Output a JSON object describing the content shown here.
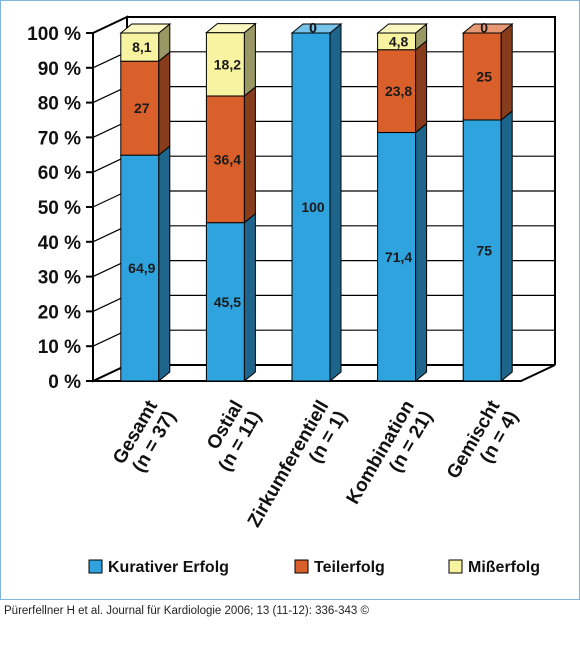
{
  "chart_data": {
    "type": "bar",
    "stacked": true,
    "three_d": true,
    "categories": [
      "Gesamt\n(n = 37)",
      "Ostial\n(n = 11)",
      "Zirkumferentiell\n(n = 1)",
      "Kombination\n(n = 21)",
      "Gemischt\n(n = 4)"
    ],
    "series": [
      {
        "name": "Kurativer Erfolg",
        "values": [
          64.9,
          45.5,
          100,
          71.4,
          75
        ],
        "labels": [
          "64,9",
          "45,5",
          "100",
          "71,4",
          "75"
        ],
        "color": "#2ea3de"
      },
      {
        "name": "Teilerfolg",
        "values": [
          27,
          36.4,
          0,
          23.8,
          25
        ],
        "labels": [
          "27",
          "36,4",
          "0",
          "23,8",
          "25"
        ],
        "color": "#d9602b"
      },
      {
        "name": "Mißerfolg",
        "values": [
          8.1,
          18.2,
          0,
          4.8,
          0
        ],
        "labels": [
          "8,1",
          "18,2",
          "0",
          "4,8",
          "0"
        ],
        "color": "#f7f3a0"
      }
    ],
    "yticks": [
      "0 %",
      "10 %",
      "20 %",
      "30 %",
      "40 %",
      "50 %",
      "60 %",
      "70 %",
      "80 %",
      "90 %",
      "100 %"
    ],
    "ylim": [
      0,
      100
    ],
    "grid": true,
    "legend_position": "bottom"
  },
  "citation": "Pürerfellner H et al. Journal für Kardiologie 2006; 13 (11-12): 336-343 ©"
}
